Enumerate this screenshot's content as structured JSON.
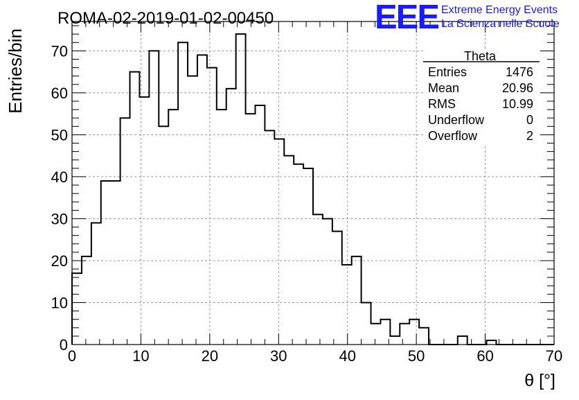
{
  "header": {
    "run_title": "ROMA-02-2019-01-02-00450",
    "logo_letters": "EEE",
    "logo_line1": "Extreme Energy Events",
    "logo_line2": "La Scienza nelle Scuole"
  },
  "colors": {
    "logo_blue": "#1a1aff",
    "histogram_line": "#000000",
    "grid": "#9a9a9a",
    "background": "#ffffff"
  },
  "stats": {
    "title": "Theta",
    "rows": [
      {
        "label": "Entries",
        "value": "1476"
      },
      {
        "label": "Mean",
        "value": "20.96"
      },
      {
        "label": "RMS",
        "value": "10.99"
      },
      {
        "label": "Underflow",
        "value": "0"
      },
      {
        "label": "Overflow",
        "value": "2"
      }
    ]
  },
  "chart_data": {
    "type": "bar",
    "histogram": true,
    "xlabel": "θ [°]",
    "ylabel": "Entries/bin",
    "xlim": [
      0,
      70
    ],
    "ylim": [
      0,
      77
    ],
    "grid": true,
    "bin_width": 1.4,
    "x_ticks": [
      0,
      10,
      20,
      30,
      40,
      50,
      60,
      70
    ],
    "y_ticks": [
      0,
      10,
      20,
      30,
      40,
      50,
      60,
      70
    ],
    "values": [
      17,
      21,
      29,
      39,
      39,
      54,
      65,
      59,
      70,
      52,
      56,
      72,
      64,
      69,
      66,
      56,
      61,
      74,
      55,
      57,
      51,
      49,
      45,
      43,
      42,
      31,
      30,
      27,
      19,
      21,
      10,
      5,
      6,
      2,
      5,
      6,
      4,
      0,
      0,
      0,
      2,
      0,
      0,
      1,
      0,
      0,
      0,
      0,
      0,
      0
    ]
  }
}
